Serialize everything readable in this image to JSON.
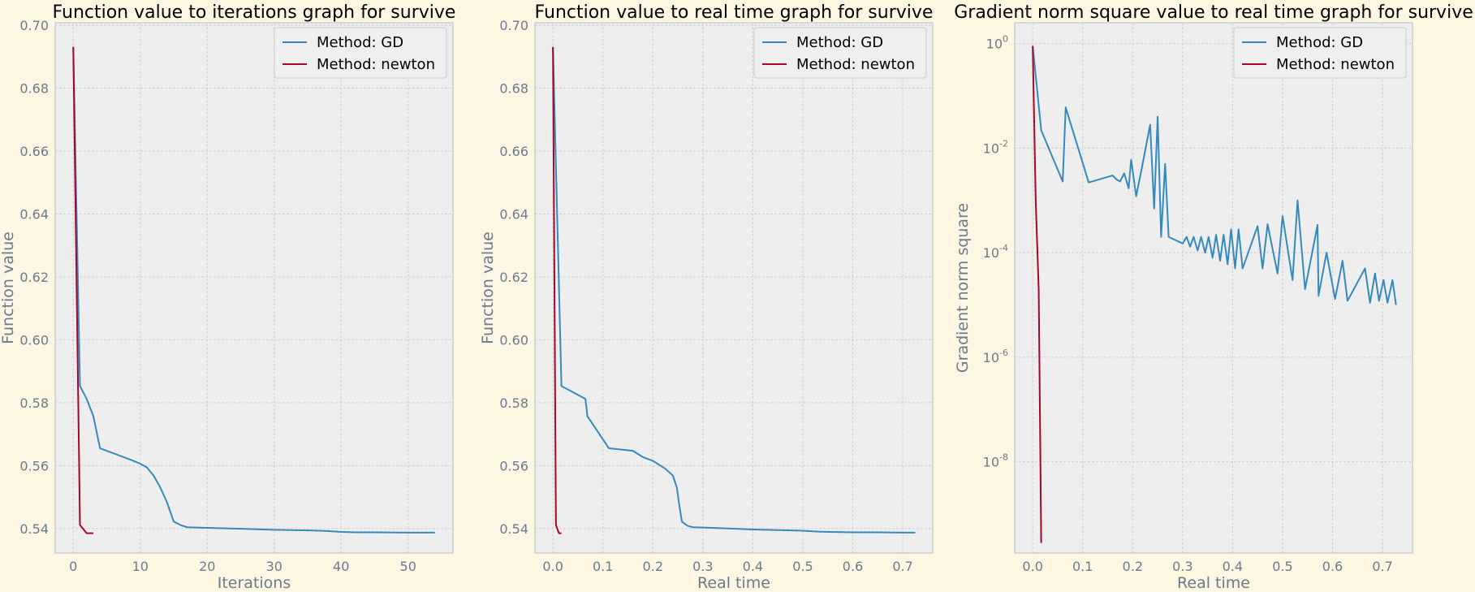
{
  "colors": {
    "figure_bg": "#fdf6e3",
    "axes_bg": "#eeeeee",
    "grid": "#d0d0d0",
    "tick_text": "#6b7b8b",
    "title_text": "#000000",
    "gd": "#348abd",
    "newton": "#a60628"
  },
  "chart_data": [
    {
      "type": "line",
      "title": "Function value to iterations graph for survive",
      "xlabel": "Iterations",
      "ylabel": "Function value",
      "xlim": [
        -2.7,
        56.7
      ],
      "ylim": [
        0.5322,
        0.7008
      ],
      "xticks": [
        0,
        10,
        20,
        30,
        40,
        50
      ],
      "xtick_labels": [
        "0",
        "10",
        "20",
        "30",
        "40",
        "50"
      ],
      "yticks": [
        0.54,
        0.56,
        0.58,
        0.6,
        0.62,
        0.64,
        0.66,
        0.68,
        0.7
      ],
      "ytick_labels": [
        "0.54",
        "0.56",
        "0.58",
        "0.60",
        "0.62",
        "0.64",
        "0.66",
        "0.68",
        "0.70"
      ],
      "grid": true,
      "legend": "top-right",
      "series": [
        {
          "name": "Method: GD",
          "x": [
            0,
            1,
            2,
            3,
            4,
            5,
            6,
            7,
            8,
            9,
            10,
            11,
            12,
            13,
            14,
            15,
            16,
            17,
            20,
            25,
            30,
            35,
            38,
            40,
            42,
            45,
            50,
            54
          ],
          "y": [
            0.6931,
            0.5853,
            0.5812,
            0.5757,
            0.5655,
            0.5647,
            0.5639,
            0.5631,
            0.5623,
            0.5615,
            0.5606,
            0.5594,
            0.5568,
            0.553,
            0.5483,
            0.5422,
            0.5411,
            0.5404,
            0.5402,
            0.5399,
            0.5396,
            0.5394,
            0.5392,
            0.5389,
            0.5388,
            0.5388,
            0.5387,
            0.5387
          ]
        },
        {
          "name": "Method: newton",
          "x": [
            0,
            1,
            2,
            3
          ],
          "y": [
            0.6931,
            0.5411,
            0.5385,
            0.5385
          ]
        }
      ]
    },
    {
      "type": "line",
      "title": "Function value to real time graph for survive",
      "xlabel": "Real time",
      "ylabel": "Function value",
      "xlim": [
        -0.036,
        0.76
      ],
      "ylim": [
        0.5322,
        0.7008
      ],
      "xticks": [
        0,
        0.1,
        0.2,
        0.3,
        0.4,
        0.5,
        0.6,
        0.7
      ],
      "xtick_labels": [
        "0.0",
        "0.1",
        "0.2",
        "0.3",
        "0.4",
        "0.5",
        "0.6",
        "0.7"
      ],
      "yticks": [
        0.54,
        0.56,
        0.58,
        0.6,
        0.62,
        0.64,
        0.66,
        0.68,
        0.7
      ],
      "ytick_labels": [
        "0.54",
        "0.56",
        "0.58",
        "0.60",
        "0.62",
        "0.64",
        "0.66",
        "0.68",
        "0.70"
      ],
      "grid": true,
      "legend": "top-right",
      "series": [
        {
          "name": "Method: GD",
          "x": [
            0,
            0.017,
            0.065,
            0.069,
            0.112,
            0.16,
            0.168,
            0.18,
            0.2,
            0.225,
            0.24,
            0.248,
            0.252,
            0.258,
            0.27,
            0.28,
            0.3,
            0.35,
            0.4,
            0.45,
            0.5,
            0.53,
            0.6,
            0.65,
            0.7,
            0.725
          ],
          "y": [
            0.6931,
            0.5853,
            0.5812,
            0.5757,
            0.5655,
            0.5647,
            0.5639,
            0.5627,
            0.5615,
            0.559,
            0.5568,
            0.553,
            0.5483,
            0.5422,
            0.5408,
            0.5404,
            0.5403,
            0.54,
            0.5397,
            0.5395,
            0.5393,
            0.539,
            0.5388,
            0.5388,
            0.5387,
            0.5387
          ]
        },
        {
          "name": "Method: newton",
          "x": [
            0,
            0.006,
            0.012,
            0.017
          ],
          "y": [
            0.6931,
            0.5411,
            0.5385,
            0.5385
          ]
        }
      ]
    },
    {
      "type": "line",
      "title": "Gradient norm square value to real time graph for survive",
      "xlabel": "Real time",
      "ylabel": "Gradient norm square",
      "yscale": "log",
      "xlim": [
        -0.036,
        0.76
      ],
      "ylim": [
        1.8e-10,
        2.5
      ],
      "xticks": [
        0,
        0.1,
        0.2,
        0.3,
        0.4,
        0.5,
        0.6,
        0.7
      ],
      "xtick_labels": [
        "0.0",
        "0.1",
        "0.2",
        "0.3",
        "0.4",
        "0.5",
        "0.6",
        "0.7"
      ],
      "yticks": [
        1,
        0.01,
        0.0001,
        1e-06,
        1e-08
      ],
      "ytick_base": [
        "10",
        "10",
        "10",
        "10",
        "10"
      ],
      "ytick_exp": [
        "0",
        "-2",
        "-4",
        "-6",
        "-8"
      ],
      "grid": true,
      "legend": "top-right",
      "series": [
        {
          "name": "Method: GD",
          "x": [
            0,
            0.017,
            0.06,
            0.066,
            0.112,
            0.16,
            0.168,
            0.175,
            0.183,
            0.192,
            0.197,
            0.207,
            0.218,
            0.235,
            0.243,
            0.25,
            0.257,
            0.265,
            0.272,
            0.3,
            0.308,
            0.315,
            0.322,
            0.33,
            0.337,
            0.345,
            0.352,
            0.36,
            0.367,
            0.375,
            0.382,
            0.39,
            0.397,
            0.405,
            0.412,
            0.42,
            0.45,
            0.46,
            0.47,
            0.49,
            0.5,
            0.52,
            0.53,
            0.545,
            0.57,
            0.572,
            0.588,
            0.605,
            0.62,
            0.63,
            0.665,
            0.675,
            0.685,
            0.693,
            0.702,
            0.71,
            0.72,
            0.727
          ],
          "y": [
            0.9,
            0.022,
            0.0023,
            0.06,
            0.0022,
            0.003,
            0.0025,
            0.0023,
            0.0033,
            0.0017,
            0.006,
            0.0012,
            0.004,
            0.028,
            0.0007,
            0.04,
            0.0002,
            0.005,
            0.0002,
            0.00015,
            0.0002,
            0.00013,
            0.0002,
            0.00011,
            0.0002,
            0.0001,
            0.0002,
            8e-05,
            0.00022,
            7e-05,
            0.00022,
            6e-05,
            0.00028,
            5e-05,
            0.00028,
            5e-05,
            0.00032,
            5e-05,
            0.00035,
            4e-05,
            0.0005,
            3e-05,
            0.001,
            2e-05,
            0.00034,
            1.5e-05,
            0.0001,
            1.3e-05,
            7e-05,
            1.2e-05,
            5e-05,
            1.1e-05,
            4e-05,
            1.2e-05,
            3e-05,
            1.1e-05,
            3e-05,
            1e-05
          ]
        },
        {
          "name": "Method: newton",
          "x": [
            0,
            0.006,
            0.012,
            0.017
          ],
          "y": [
            0.9,
            0.001,
            2e-05,
            2.8e-10
          ]
        }
      ]
    }
  ]
}
